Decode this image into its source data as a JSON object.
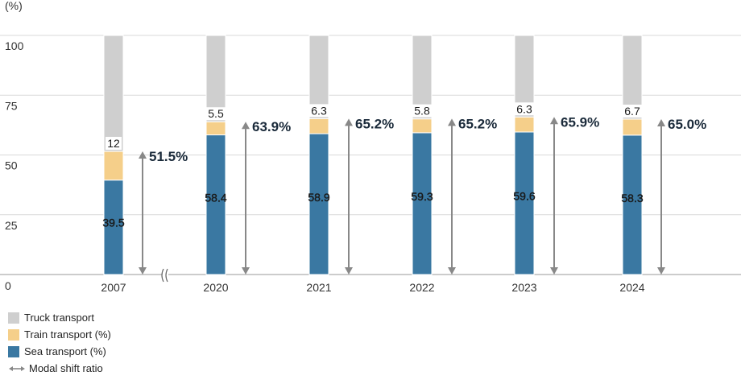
{
  "chart_data": {
    "type": "bar",
    "stacked": true,
    "ylabel": "(%)",
    "ylim": [
      0,
      100
    ],
    "yticks": [
      0,
      25,
      50,
      75,
      100
    ],
    "grid": true,
    "categories": [
      "2007",
      "2020",
      "2021",
      "2022",
      "2023",
      "2024"
    ],
    "axis_break_after": "2007",
    "series": [
      {
        "name": "Sea transport (%)",
        "color": "#3a78a2",
        "values": [
          39.5,
          58.4,
          58.9,
          59.3,
          59.6,
          58.3
        ],
        "labels": [
          "39.5",
          "58.4",
          "58.9",
          "59.3",
          "59.6",
          "58.3"
        ]
      },
      {
        "name": "Train transport (%)",
        "color": "#f5cf8a",
        "values": [
          12,
          5.5,
          6.3,
          5.8,
          6.3,
          6.7
        ],
        "labels": [
          "12",
          "5.5",
          "6.3",
          "5.8",
          "6.3",
          "6.7"
        ]
      },
      {
        "name": "Truck transport",
        "color": "#cfcfcf",
        "values": [
          48.5,
          36.1,
          34.8,
          34.9,
          34.1,
          35.0
        ]
      }
    ],
    "modal_shift_ratio": {
      "name": "Modal shift ratio",
      "values": [
        51.5,
        63.9,
        65.2,
        65.2,
        65.9,
        65.0
      ],
      "labels": [
        "51.5%",
        "63.9%",
        "65.2%",
        "65.2%",
        "65.9%",
        "65.0%"
      ]
    },
    "legend": [
      "Truck transport",
      "Train transport (%)",
      "Sea transport (%)",
      "Modal shift ratio"
    ],
    "legend_position": "bottom-left"
  },
  "colors": {
    "sea": "#3a78a2",
    "train": "#f5cf8a",
    "truck": "#cfcfcf",
    "arrow": "#888888",
    "grid": "#d9d9d9"
  }
}
